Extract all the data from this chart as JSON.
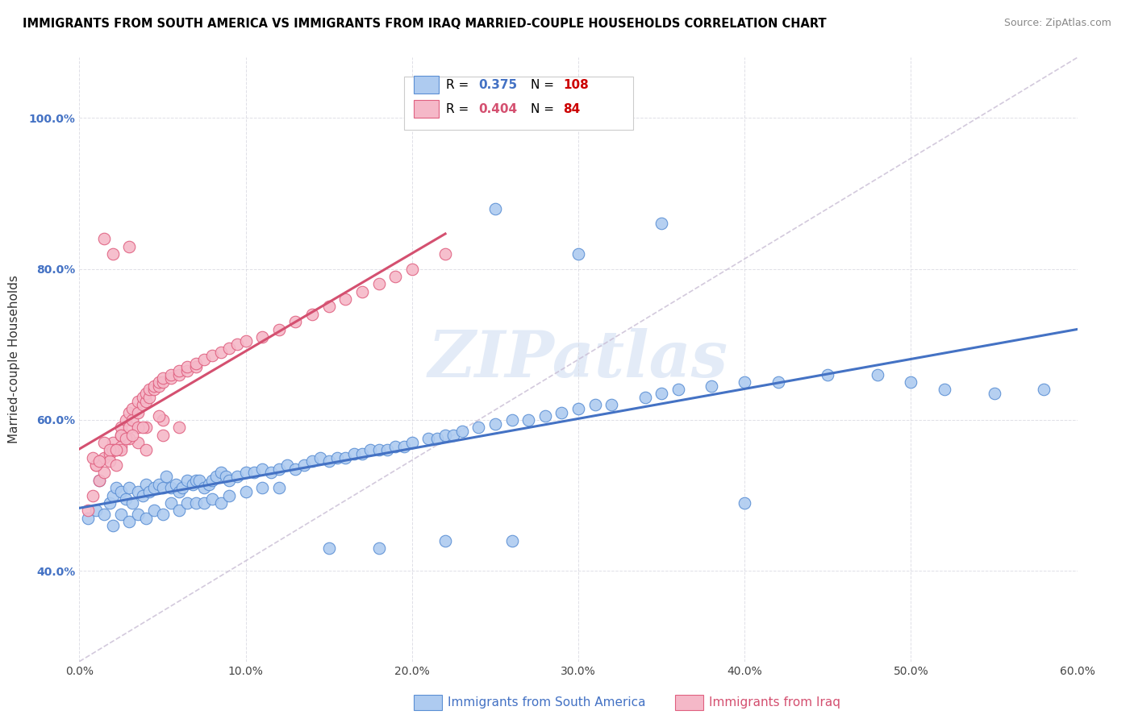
{
  "title": "IMMIGRANTS FROM SOUTH AMERICA VS IMMIGRANTS FROM IRAQ MARRIED-COUPLE HOUSEHOLDS CORRELATION CHART",
  "source": "Source: ZipAtlas.com",
  "ylabel": "Married-couple Households",
  "xlabel_blue": "Immigrants from South America",
  "xlabel_pink": "Immigrants from Iraq",
  "r_blue": "0.375",
  "n_blue": "108",
  "r_pink": "0.404",
  "n_pink": "84",
  "xmin": 0.0,
  "xmax": 0.6,
  "ymin": 0.28,
  "ymax": 1.08,
  "yticks": [
    0.4,
    0.6,
    0.8,
    1.0
  ],
  "xticks": [
    0.0,
    0.1,
    0.2,
    0.3,
    0.4,
    0.5,
    0.6
  ],
  "color_blue": "#aecbf0",
  "color_blue_edge": "#5b8fd4",
  "color_blue_line": "#4472c4",
  "color_pink": "#f5b8c8",
  "color_pink_edge": "#e06080",
  "color_pink_line": "#d45070",
  "color_diag": "#c8bcd4",
  "watermark": "ZIPatlas",
  "blue_scatter_x": [
    0.005,
    0.01,
    0.012,
    0.015,
    0.018,
    0.02,
    0.02,
    0.022,
    0.025,
    0.025,
    0.028,
    0.03,
    0.03,
    0.032,
    0.035,
    0.035,
    0.038,
    0.04,
    0.04,
    0.042,
    0.045,
    0.045,
    0.048,
    0.05,
    0.05,
    0.052,
    0.055,
    0.055,
    0.058,
    0.06,
    0.06,
    0.062,
    0.065,
    0.065,
    0.068,
    0.07,
    0.07,
    0.072,
    0.075,
    0.075,
    0.078,
    0.08,
    0.08,
    0.082,
    0.085,
    0.085,
    0.088,
    0.09,
    0.09,
    0.095,
    0.1,
    0.1,
    0.105,
    0.11,
    0.11,
    0.115,
    0.12,
    0.12,
    0.125,
    0.13,
    0.135,
    0.14,
    0.145,
    0.15,
    0.155,
    0.16,
    0.165,
    0.17,
    0.175,
    0.18,
    0.185,
    0.19,
    0.195,
    0.2,
    0.21,
    0.215,
    0.22,
    0.225,
    0.23,
    0.24,
    0.25,
    0.26,
    0.27,
    0.28,
    0.29,
    0.3,
    0.31,
    0.32,
    0.34,
    0.35,
    0.36,
    0.38,
    0.4,
    0.42,
    0.45,
    0.48,
    0.5,
    0.52,
    0.55,
    0.58,
    0.25,
    0.35,
    0.3,
    0.4,
    0.15,
    0.18,
    0.22,
    0.26
  ],
  "blue_scatter_y": [
    0.47,
    0.48,
    0.52,
    0.475,
    0.49,
    0.5,
    0.46,
    0.51,
    0.505,
    0.475,
    0.495,
    0.51,
    0.465,
    0.49,
    0.505,
    0.475,
    0.5,
    0.515,
    0.47,
    0.505,
    0.51,
    0.48,
    0.515,
    0.51,
    0.475,
    0.525,
    0.51,
    0.49,
    0.515,
    0.505,
    0.48,
    0.51,
    0.52,
    0.49,
    0.515,
    0.52,
    0.49,
    0.52,
    0.51,
    0.49,
    0.515,
    0.52,
    0.495,
    0.525,
    0.53,
    0.49,
    0.525,
    0.52,
    0.5,
    0.525,
    0.53,
    0.505,
    0.53,
    0.535,
    0.51,
    0.53,
    0.535,
    0.51,
    0.54,
    0.535,
    0.54,
    0.545,
    0.55,
    0.545,
    0.55,
    0.55,
    0.555,
    0.555,
    0.56,
    0.56,
    0.56,
    0.565,
    0.565,
    0.57,
    0.575,
    0.575,
    0.58,
    0.58,
    0.585,
    0.59,
    0.595,
    0.6,
    0.6,
    0.605,
    0.61,
    0.615,
    0.62,
    0.62,
    0.63,
    0.635,
    0.64,
    0.645,
    0.65,
    0.65,
    0.66,
    0.66,
    0.65,
    0.64,
    0.635,
    0.64,
    0.88,
    0.86,
    0.82,
    0.49,
    0.43,
    0.43,
    0.44,
    0.44
  ],
  "pink_scatter_x": [
    0.005,
    0.008,
    0.01,
    0.012,
    0.015,
    0.015,
    0.018,
    0.018,
    0.02,
    0.02,
    0.022,
    0.022,
    0.025,
    0.025,
    0.025,
    0.028,
    0.028,
    0.03,
    0.03,
    0.032,
    0.032,
    0.035,
    0.035,
    0.038,
    0.038,
    0.04,
    0.04,
    0.042,
    0.042,
    0.045,
    0.045,
    0.048,
    0.048,
    0.05,
    0.05,
    0.055,
    0.055,
    0.06,
    0.06,
    0.065,
    0.065,
    0.07,
    0.07,
    0.075,
    0.08,
    0.085,
    0.09,
    0.095,
    0.1,
    0.11,
    0.12,
    0.13,
    0.14,
    0.15,
    0.16,
    0.17,
    0.18,
    0.19,
    0.2,
    0.22,
    0.02,
    0.03,
    0.015,
    0.025,
    0.035,
    0.04,
    0.05,
    0.06,
    0.01,
    0.02,
    0.03,
    0.04,
    0.05,
    0.015,
    0.025,
    0.035,
    0.008,
    0.018,
    0.028,
    0.038,
    0.048,
    0.012,
    0.022,
    0.032
  ],
  "pink_scatter_y": [
    0.48,
    0.5,
    0.54,
    0.52,
    0.53,
    0.55,
    0.555,
    0.545,
    0.56,
    0.57,
    0.54,
    0.56,
    0.565,
    0.58,
    0.59,
    0.58,
    0.6,
    0.59,
    0.61,
    0.6,
    0.615,
    0.61,
    0.625,
    0.62,
    0.63,
    0.625,
    0.635,
    0.63,
    0.64,
    0.64,
    0.645,
    0.645,
    0.65,
    0.65,
    0.655,
    0.655,
    0.66,
    0.66,
    0.665,
    0.665,
    0.67,
    0.67,
    0.675,
    0.68,
    0.685,
    0.69,
    0.695,
    0.7,
    0.705,
    0.71,
    0.72,
    0.73,
    0.74,
    0.75,
    0.76,
    0.77,
    0.78,
    0.79,
    0.8,
    0.82,
    0.82,
    0.83,
    0.84,
    0.56,
    0.57,
    0.56,
    0.58,
    0.59,
    0.54,
    0.56,
    0.575,
    0.59,
    0.6,
    0.57,
    0.58,
    0.59,
    0.55,
    0.56,
    0.575,
    0.59,
    0.605,
    0.545,
    0.56,
    0.58
  ]
}
